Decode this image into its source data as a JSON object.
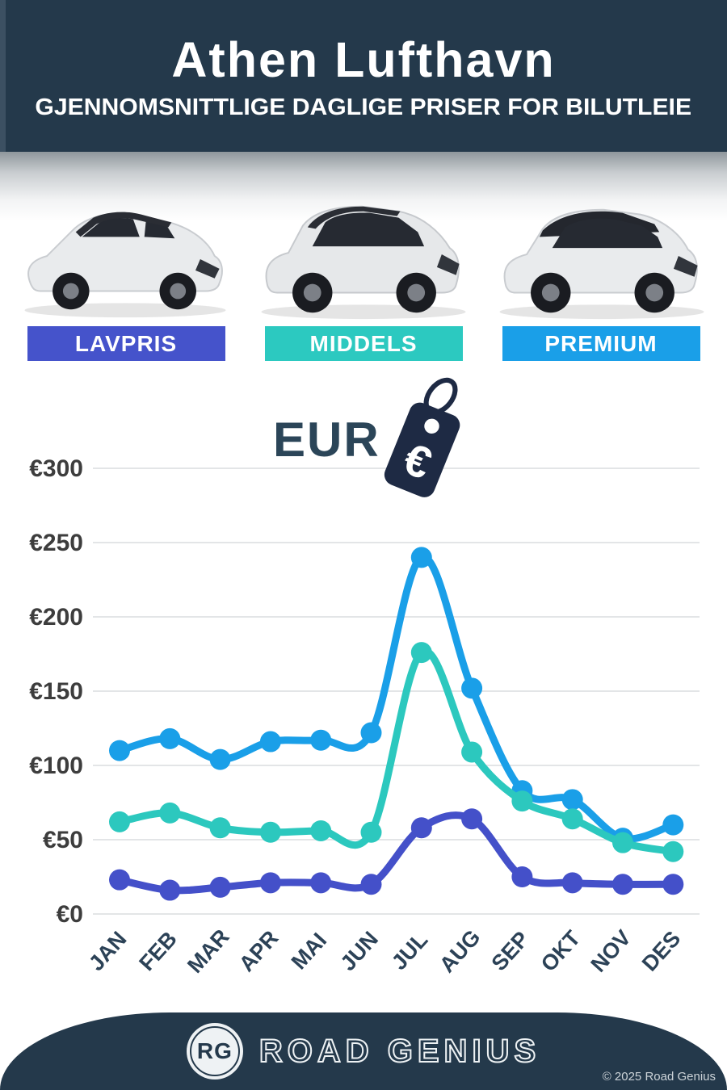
{
  "header": {
    "title": "Athen Lufthavn",
    "subtitle": "GJENNOMSNITTLIGE DAGLIGE PRISER FOR BILUTLEIE"
  },
  "category_bars": [
    {
      "label": "LAVPRIS",
      "color": "#4553cb"
    },
    {
      "label": "MIDDELS",
      "color": "#2cc9c0"
    },
    {
      "label": "PREMIUM",
      "color": "#1a9fe8"
    }
  ],
  "currency": {
    "label": "EUR",
    "symbol": "€"
  },
  "chart_data": {
    "type": "line",
    "title": "Gjennomsnittlige daglige priser for bilutleie, Athen Lufthavn (EUR)",
    "categories": [
      "JAN",
      "FEB",
      "MAR",
      "APR",
      "MAI",
      "JUN",
      "JUL",
      "AUG",
      "SEP",
      "OKT",
      "NOV",
      "DES"
    ],
    "series": [
      {
        "name": "PREMIUM",
        "color": "#1a9fe8",
        "values": [
          110,
          118,
          104,
          116,
          117,
          122,
          240,
          152,
          83,
          77,
          51,
          60
        ]
      },
      {
        "name": "MIDDELS",
        "color": "#2cc8be",
        "values": [
          62,
          68,
          58,
          55,
          56,
          55,
          176,
          109,
          76,
          64,
          48,
          42
        ]
      },
      {
        "name": "LAVPRIS",
        "color": "#4450c9",
        "values": [
          23,
          16,
          18,
          21,
          21,
          20,
          58,
          64,
          25,
          21,
          20,
          20
        ]
      }
    ],
    "currency_prefix": "€",
    "ylim": [
      0,
      300
    ],
    "ytick_step": 50,
    "grid": true,
    "legend_position": "category-bars-above-chart",
    "xlabel": "",
    "ylabel": ""
  },
  "footer": {
    "logo_text": "RG",
    "brand": "ROAD GENIUS",
    "copyright": "© 2025 Road Genius"
  },
  "theme": {
    "header_bg": "#24394b",
    "footer_bg": "#24394b",
    "grid_color": "#e3e5e7",
    "axis_label_color": "#3d3d3d",
    "month_label_color": "#2c4257",
    "eur_text_color": "#2b4558",
    "tag_color": "#1e2a44"
  }
}
